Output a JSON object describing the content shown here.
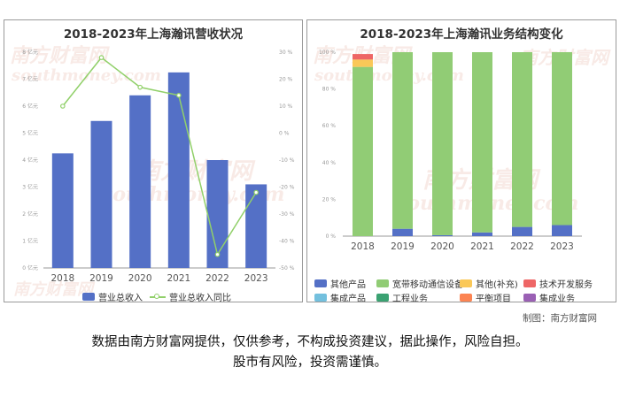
{
  "left": {
    "title": "2018-2023年上海瀚讯营收状况",
    "left_axis_ticks": [
      "0 亿元",
      "1 亿元",
      "2 亿元",
      "3 亿元",
      "4 亿元",
      "5 亿元",
      "6 亿元",
      "7 亿元",
      "8 亿元"
    ],
    "right_axis_ticks": [
      "-50 %",
      "-40 %",
      "-30 %",
      "-20 %",
      "-10 %",
      "0 %",
      "10 %",
      "20 %",
      "30 %"
    ],
    "legend": {
      "bar": "营业总收入",
      "line": "营业总收入同比"
    }
  },
  "right": {
    "title": "2018-2023年上海瀚讯业务结构变化",
    "y_axis_ticks": [
      "0 %",
      "20 %",
      "40 %",
      "60 %",
      "80 %",
      "100 %"
    ],
    "legend": [
      {
        "label": "其他产品",
        "color": "#5470c6"
      },
      {
        "label": "宽带移动通信设备",
        "color": "#91cc75"
      },
      {
        "label": "其他(补充)",
        "color": "#fac858"
      },
      {
        "label": "技术开发服务",
        "color": "#ee6666"
      },
      {
        "label": "集成产品",
        "color": "#73c0de"
      },
      {
        "label": "工程业务",
        "color": "#3ba272"
      },
      {
        "label": "平衡项目",
        "color": "#fc8452"
      },
      {
        "label": "集成业务",
        "color": "#9a60b4"
      }
    ]
  },
  "watermarks": {
    "brand": "南方财富网",
    "url": "southmoney.com"
  },
  "credit": "制图：南方财富网",
  "disclaimer": {
    "line1": "数据由南方财富网提供，仅供参考，不构成投资建议，据此操作，风险自担。",
    "line2": "股市有风险，投资需谨慎。"
  },
  "chart_data": [
    {
      "type": "bar",
      "title": "2018-2023年上海瀚讯营收状况",
      "categories": [
        "2018",
        "2019",
        "2020",
        "2021",
        "2022",
        "2023"
      ],
      "series": [
        {
          "name": "营业总收入",
          "type": "bar",
          "axis": "left",
          "unit": "亿元",
          "values": [
            4.25,
            5.45,
            6.4,
            7.25,
            4.0,
            3.1
          ]
        },
        {
          "name": "营业总收入同比",
          "type": "line",
          "axis": "right",
          "unit": "%",
          "values": [
            10,
            28,
            17,
            14,
            -45,
            -22
          ]
        }
      ],
      "ylim_left": [
        0,
        8
      ],
      "ylim_right": [
        -50,
        30
      ],
      "grid": false,
      "legend_position": "bottom"
    },
    {
      "type": "bar",
      "stacked": true,
      "title": "2018-2023年上海瀚讯业务结构变化",
      "categories": [
        "2018",
        "2019",
        "2020",
        "2021",
        "2022",
        "2023"
      ],
      "series": [
        {
          "name": "其他产品",
          "values": [
            0,
            4,
            0.5,
            2,
            5,
            6
          ]
        },
        {
          "name": "宽带移动通信设备",
          "values": [
            92,
            96,
            99.5,
            98,
            95,
            94
          ]
        },
        {
          "name": "其他(补充)",
          "values": [
            4,
            0,
            0,
            0,
            0,
            0
          ]
        },
        {
          "name": "技术开发服务",
          "values": [
            3,
            0,
            0,
            0,
            0,
            0
          ]
        },
        {
          "name": "集成产品",
          "values": [
            0,
            0,
            0,
            0,
            0,
            0
          ]
        },
        {
          "name": "工程业务",
          "values": [
            0,
            0,
            0,
            0,
            0,
            0
          ]
        },
        {
          "name": "平衡项目",
          "values": [
            0,
            0,
            0,
            0,
            0,
            0
          ]
        },
        {
          "name": "集成业务",
          "values": [
            0,
            0,
            0,
            0,
            0,
            0
          ]
        }
      ],
      "ylim": [
        0,
        100
      ],
      "yunit": "%",
      "grid": false,
      "legend_position": "bottom"
    }
  ]
}
